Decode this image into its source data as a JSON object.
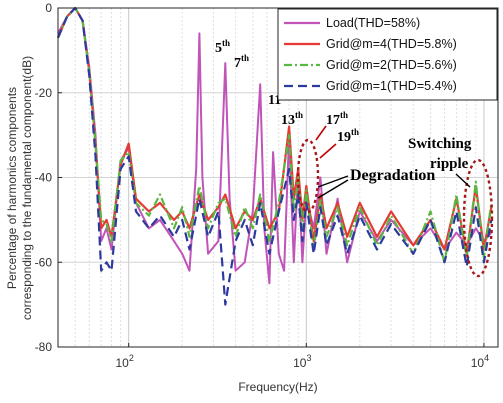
{
  "chart_data": {
    "type": "line",
    "title": "",
    "xlabel": "Frequency(Hz)",
    "ylabel_line1": "Percentage of harmonics components",
    "ylabel_line2": "corresponding to the fundamental component(dB)",
    "x_scale": "log",
    "xlim": [
      40,
      12000
    ],
    "ylim": [
      -80,
      0
    ],
    "grid": true,
    "legend_position": "top-right",
    "x_ticks": [
      {
        "value": 100,
        "base": "10",
        "exp": "2"
      },
      {
        "value": 1000,
        "base": "10",
        "exp": "3"
      },
      {
        "value": 10000,
        "base": "10",
        "exp": "4"
      }
    ],
    "y_ticks": [
      0,
      -20,
      -40,
      -60,
      -80
    ],
    "series": [
      {
        "name": "Load(THD=58%)",
        "color": "#c054b8",
        "dash": "solid",
        "points": [
          [
            40,
            -6
          ],
          [
            45,
            -2
          ],
          [
            50,
            0
          ],
          [
            55,
            -3
          ],
          [
            60,
            -14
          ],
          [
            65,
            -30
          ],
          [
            70,
            -55
          ],
          [
            75,
            -52
          ],
          [
            80,
            -57
          ],
          [
            90,
            -36
          ],
          [
            100,
            -33
          ],
          [
            110,
            -46
          ],
          [
            130,
            -52
          ],
          [
            150,
            -50
          ],
          [
            180,
            -55
          ],
          [
            200,
            -58
          ],
          [
            220,
            -62
          ],
          [
            240,
            -38
          ],
          [
            250,
            -6
          ],
          [
            260,
            -40
          ],
          [
            280,
            -58
          ],
          [
            320,
            -55
          ],
          [
            350,
            -13
          ],
          [
            370,
            -45
          ],
          [
            400,
            -62
          ],
          [
            450,
            -60
          ],
          [
            500,
            -48
          ],
          [
            550,
            -18
          ],
          [
            580,
            -52
          ],
          [
            620,
            -65
          ],
          [
            650,
            -34
          ],
          [
            700,
            -58
          ],
          [
            750,
            -62
          ],
          [
            800,
            -30
          ],
          [
            850,
            -60
          ],
          [
            900,
            -38
          ],
          [
            950,
            -60
          ],
          [
            1000,
            -45
          ],
          [
            1100,
            -52
          ],
          [
            1200,
            -40
          ],
          [
            1300,
            -58
          ],
          [
            1500,
            -45
          ],
          [
            1700,
            -60
          ],
          [
            2000,
            -48
          ],
          [
            2500,
            -55
          ],
          [
            3000,
            -50
          ],
          [
            4000,
            -56
          ],
          [
            5000,
            -52
          ],
          [
            6000,
            -57
          ],
          [
            7000,
            -53
          ],
          [
            8000,
            -56
          ],
          [
            9000,
            -52
          ],
          [
            10000,
            -55
          ],
          [
            11000,
            -53
          ]
        ]
      },
      {
        "name": "Grid@m=4(THD=5.8%)",
        "color": "#e53a33",
        "dash": "solid",
        "points": [
          [
            40,
            -7
          ],
          [
            45,
            -2
          ],
          [
            50,
            0
          ],
          [
            55,
            -3
          ],
          [
            60,
            -15
          ],
          [
            65,
            -32
          ],
          [
            70,
            -52
          ],
          [
            75,
            -50
          ],
          [
            80,
            -54
          ],
          [
            90,
            -37
          ],
          [
            100,
            -32
          ],
          [
            110,
            -45
          ],
          [
            130,
            -48
          ],
          [
            150,
            -46
          ],
          [
            180,
            -50
          ],
          [
            200,
            -48
          ],
          [
            220,
            -52
          ],
          [
            250,
            -44
          ],
          [
            280,
            -50
          ],
          [
            320,
            -47
          ],
          [
            350,
            -44
          ],
          [
            400,
            -52
          ],
          [
            450,
            -48
          ],
          [
            500,
            -50
          ],
          [
            550,
            -45
          ],
          [
            620,
            -52
          ],
          [
            700,
            -48
          ],
          [
            800,
            -28
          ],
          [
            850,
            -45
          ],
          [
            900,
            -38
          ],
          [
            950,
            -50
          ],
          [
            1000,
            -42
          ],
          [
            1100,
            -55
          ],
          [
            1200,
            -44
          ],
          [
            1300,
            -52
          ],
          [
            1500,
            -46
          ],
          [
            1700,
            -54
          ],
          [
            2000,
            -46
          ],
          [
            2500,
            -54
          ],
          [
            3000,
            -48
          ],
          [
            4000,
            -56
          ],
          [
            5000,
            -50
          ],
          [
            6000,
            -57
          ],
          [
            7000,
            -45
          ],
          [
            8000,
            -58
          ],
          [
            9000,
            -42
          ],
          [
            10000,
            -57
          ],
          [
            11000,
            -47
          ]
        ]
      },
      {
        "name": "Grid@m=2(THD=5.6%)",
        "color": "#58b840",
        "dash": "dashdot",
        "points": [
          [
            40,
            -7
          ],
          [
            45,
            -2
          ],
          [
            50,
            0
          ],
          [
            55,
            -3
          ],
          [
            60,
            -15
          ],
          [
            65,
            -32
          ],
          [
            70,
            -50
          ],
          [
            75,
            -51
          ],
          [
            80,
            -55
          ],
          [
            90,
            -36
          ],
          [
            100,
            -34
          ],
          [
            110,
            -46
          ],
          [
            130,
            -49
          ],
          [
            150,
            -44
          ],
          [
            180,
            -52
          ],
          [
            200,
            -47
          ],
          [
            220,
            -54
          ],
          [
            250,
            -42
          ],
          [
            280,
            -52
          ],
          [
            320,
            -46
          ],
          [
            350,
            -45
          ],
          [
            400,
            -54
          ],
          [
            450,
            -47
          ],
          [
            500,
            -52
          ],
          [
            550,
            -44
          ],
          [
            620,
            -55
          ],
          [
            700,
            -46
          ],
          [
            800,
            -30
          ],
          [
            850,
            -48
          ],
          [
            900,
            -40
          ],
          [
            950,
            -52
          ],
          [
            1000,
            -43
          ],
          [
            1100,
            -57
          ],
          [
            1200,
            -45
          ],
          [
            1300,
            -54
          ],
          [
            1500,
            -47
          ],
          [
            1700,
            -56
          ],
          [
            2000,
            -47
          ],
          [
            2500,
            -56
          ],
          [
            3000,
            -49
          ],
          [
            4000,
            -58
          ],
          [
            5000,
            -48
          ],
          [
            6000,
            -60
          ],
          [
            7000,
            -44
          ],
          [
            8000,
            -59
          ],
          [
            9000,
            -41
          ],
          [
            10000,
            -59
          ],
          [
            11000,
            -46
          ]
        ]
      },
      {
        "name": "Grid@m=1(THD=5.4%)",
        "color": "#2d3a9e",
        "dash": "dashed",
        "points": [
          [
            40,
            -7
          ],
          [
            45,
            -2
          ],
          [
            50,
            0
          ],
          [
            55,
            -3
          ],
          [
            60,
            -16
          ],
          [
            65,
            -35
          ],
          [
            70,
            -62
          ],
          [
            75,
            -60
          ],
          [
            80,
            -62
          ],
          [
            90,
            -38
          ],
          [
            100,
            -35
          ],
          [
            110,
            -48
          ],
          [
            130,
            -52
          ],
          [
            150,
            -49
          ],
          [
            180,
            -54
          ],
          [
            200,
            -50
          ],
          [
            220,
            -57
          ],
          [
            250,
            -45
          ],
          [
            280,
            -54
          ],
          [
            320,
            -48
          ],
          [
            350,
            -70
          ],
          [
            400,
            -55
          ],
          [
            450,
            -50
          ],
          [
            500,
            -56
          ],
          [
            550,
            -46
          ],
          [
            620,
            -58
          ],
          [
            700,
            -48
          ],
          [
            800,
            -38
          ],
          [
            850,
            -50
          ],
          [
            900,
            -44
          ],
          [
            950,
            -55
          ],
          [
            1000,
            -46
          ],
          [
            1100,
            -58
          ],
          [
            1200,
            -47
          ],
          [
            1300,
            -56
          ],
          [
            1500,
            -49
          ],
          [
            1700,
            -58
          ],
          [
            2000,
            -49
          ],
          [
            2500,
            -57
          ],
          [
            3000,
            -51
          ],
          [
            4000,
            -58
          ],
          [
            5000,
            -50
          ],
          [
            6000,
            -60
          ],
          [
            7000,
            -48
          ],
          [
            8000,
            -61
          ],
          [
            9000,
            -47
          ],
          [
            10000,
            -60
          ],
          [
            11000,
            -50
          ]
        ]
      }
    ],
    "annotations": {
      "h5": {
        "base": "5",
        "sup": "th"
      },
      "h7": {
        "base": "7",
        "sup": "th"
      },
      "h11": {
        "base": "11",
        "sup": "th"
      },
      "h13": {
        "base": "13",
        "sup": "th"
      },
      "h17": {
        "base": "17",
        "sup": "th"
      },
      "h19": {
        "base": "19",
        "sup": "th"
      },
      "degradation": "Degradation",
      "switching_1": "Switching",
      "switching_2": "ripple"
    }
  }
}
